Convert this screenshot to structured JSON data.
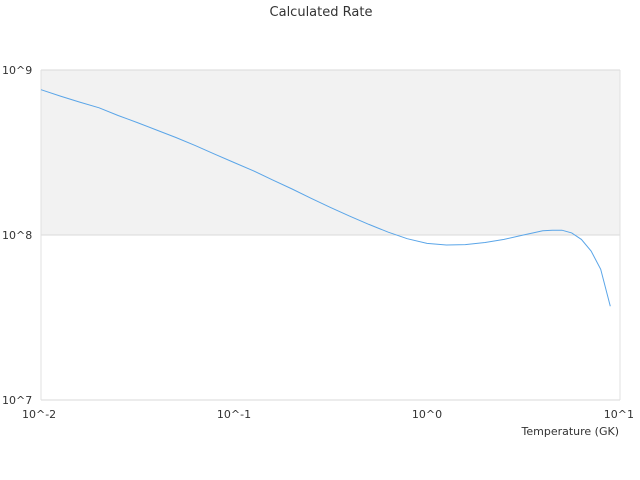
{
  "chart_data": {
    "type": "line",
    "title": "Calculated Rate",
    "xlabel": "Temperature (GK)",
    "ylabel": "",
    "x_scale": "log",
    "y_scale": "log",
    "xlim": [
      0.01,
      10
    ],
    "ylim": [
      10000000,
      1000000000
    ],
    "x_ticks": [
      "10^-2",
      "10^-1",
      "10^0",
      "10^1"
    ],
    "y_ticks": [
      "10^7",
      "10^8",
      "10^9"
    ],
    "grid": true,
    "legend": "none",
    "band_color": "#f2f2f2",
    "line_color": "#5aa5e8",
    "series": [
      {
        "x": [
          0.01,
          0.0126,
          0.0158,
          0.02,
          0.0251,
          0.0316,
          0.0398,
          0.05,
          0.063,
          0.079,
          0.1,
          0.126,
          0.158,
          0.2,
          0.251,
          0.316,
          0.398,
          0.5,
          0.63,
          0.79,
          1.0,
          1.26,
          1.58,
          2.0,
          2.51,
          3.16,
          3.55,
          3.98,
          4.47,
          5.0,
          5.62,
          6.31,
          7.08,
          7.94,
          8.91
        ],
        "y": [
          760000000,
          695000000,
          640000000,
          590000000,
          530000000,
          480000000,
          432000000,
          390000000,
          348000000,
          310000000,
          275000000,
          245000000,
          216000000,
          190000000,
          167000000,
          147000000,
          130000000,
          116000000,
          104000000,
          95000000,
          89000000,
          87000000,
          87500000,
          90000000,
          94000000,
          100000000,
          103000000,
          106000000,
          107000000,
          107000000,
          103000000,
          94000000,
          80000000,
          62000000,
          37000000
        ]
      }
    ]
  }
}
